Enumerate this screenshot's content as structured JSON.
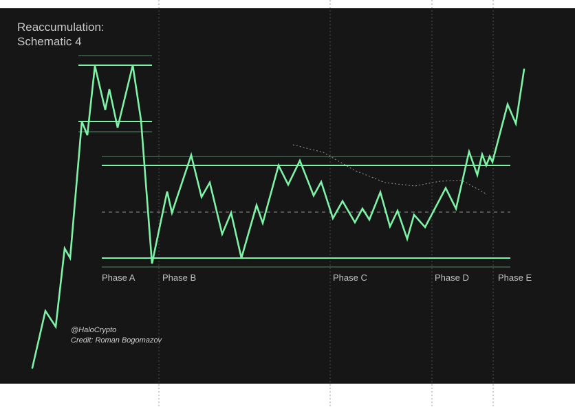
{
  "chart_data": {
    "type": "line",
    "title_lines": [
      "Reaccumulation:",
      "Schematic 4"
    ],
    "credits": [
      "@HaloCrypto",
      "Credit: Roman Bogomazov"
    ],
    "phases": [
      {
        "label": "Phase A",
        "start": 2,
        "end": 10
      },
      {
        "label": "Phase B",
        "start": 10,
        "end": 33
      },
      {
        "label": "Phase C",
        "start": 33,
        "end": 43
      },
      {
        "label": "Phase D",
        "start": 43,
        "end": 49
      },
      {
        "label": "Phase E",
        "start": 49,
        "end": 52
      }
    ],
    "price_path": [
      [
        0,
        0
      ],
      [
        1,
        17
      ],
      [
        2,
        12
      ],
      [
        3,
        34
      ],
      [
        4,
        32
      ],
      [
        5,
        70
      ],
      [
        6,
        68
      ],
      [
        7,
        89
      ],
      [
        8,
        78
      ],
      [
        9,
        84
      ],
      [
        10,
        75
      ],
      [
        11,
        91
      ],
      [
        12,
        68
      ],
      [
        13,
        2
      ],
      [
        14,
        19
      ],
      [
        15,
        13
      ],
      [
        16,
        30
      ],
      [
        17,
        21
      ],
      [
        18,
        24
      ],
      [
        19,
        12
      ],
      [
        20,
        2
      ],
      [
        21,
        15
      ],
      [
        22,
        10
      ],
      [
        23,
        27
      ],
      [
        24,
        22
      ],
      [
        25,
        27
      ],
      [
        26,
        19
      ],
      [
        27,
        22
      ],
      [
        28,
        17
      ],
      [
        29,
        13
      ],
      [
        30,
        16
      ],
      [
        31,
        13
      ],
      [
        32,
        15
      ],
      [
        33,
        12
      ],
      [
        34,
        19
      ],
      [
        35,
        12
      ],
      [
        36,
        16
      ],
      [
        37,
        11
      ],
      [
        38,
        13
      ],
      [
        39,
        10
      ],
      [
        40,
        13
      ],
      [
        41,
        18
      ],
      [
        42,
        14
      ],
      [
        43,
        27
      ],
      [
        44,
        24
      ],
      [
        45,
        29
      ],
      [
        46,
        26
      ],
      [
        47,
        28
      ],
      [
        48,
        32
      ],
      [
        49,
        70
      ],
      [
        50,
        83
      ],
      [
        51,
        85
      ],
      [
        52,
        88
      ]
    ],
    "dotted_path": [
      [
        27,
        30
      ],
      [
        30,
        28
      ],
      [
        33,
        23
      ],
      [
        36,
        21
      ],
      [
        39,
        22
      ],
      [
        42,
        24
      ],
      [
        45,
        23
      ],
      [
        48,
        22
      ]
    ],
    "support_level": 2,
    "resistance_level": 27,
    "midline_level": 14,
    "phase_a_top": 91,
    "phase_a_mid": 75,
    "line_color": "#7ef2a6",
    "background_color": "#161616"
  }
}
